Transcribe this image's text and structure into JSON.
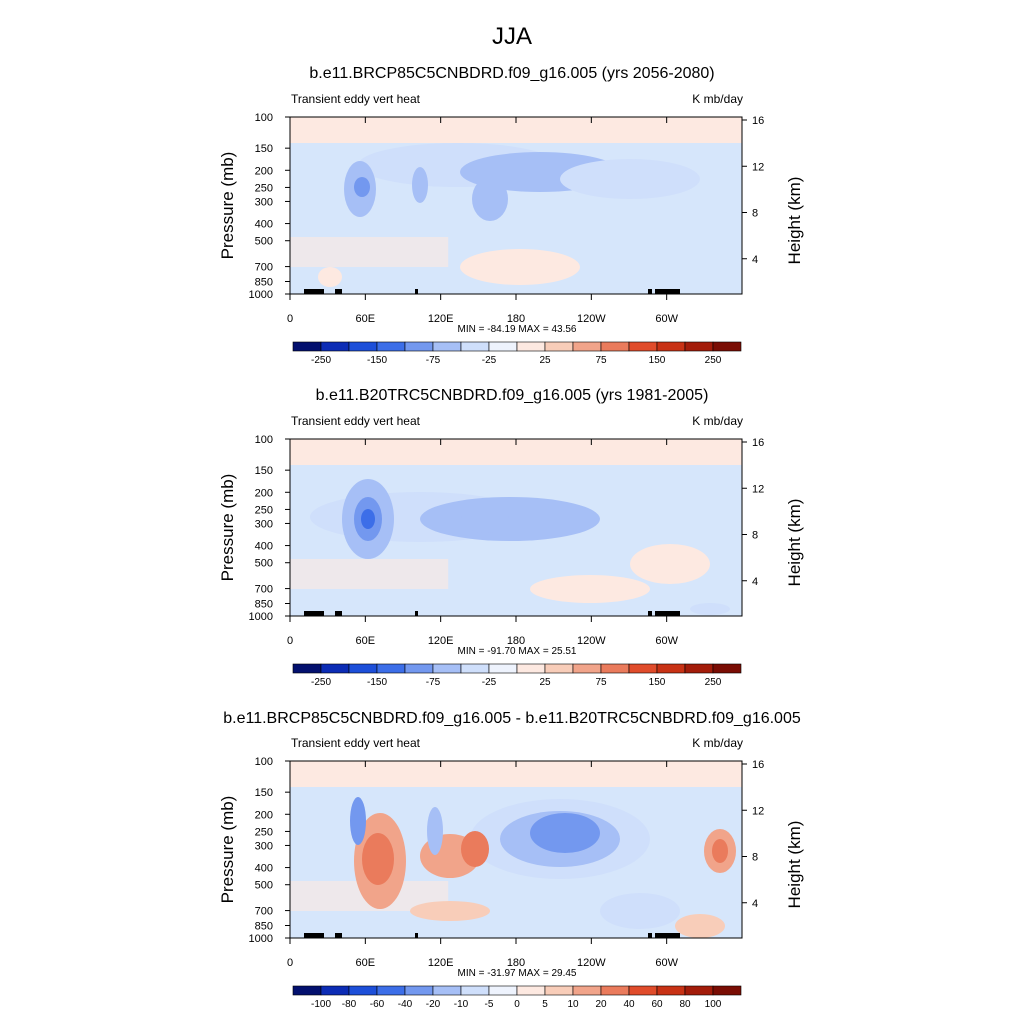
{
  "figure_title": "JJA",
  "colors": {
    "ocean_fill": "#d6e6fb",
    "land_fill": "#000000",
    "frame": "#000000"
  },
  "chart_data": [
    {
      "type": "heatmap",
      "title": "b.e11.BRCP85C5CNBDRD.f09_g16.005 (yrs 2056-2080)",
      "left_label": "Transient eddy vert heat",
      "right_label": "K mb/day",
      "ylabel": "Pressure (mb)",
      "ylabel_right": "Height (km)",
      "x_ticks": [
        "0",
        "60E",
        "120E",
        "180",
        "120W",
        "60W"
      ],
      "y_ticks": [
        "100",
        "150",
        "200",
        "250",
        "300",
        "400",
        "500",
        "700",
        "850",
        "1000"
      ],
      "y_ticks_right": [
        "16",
        "12",
        "8",
        "4"
      ],
      "stats": "MIN = -84.19  MAX =  43.56",
      "colorbar_labels": [
        "-250",
        "-150",
        "-75",
        "-25",
        "25",
        "75",
        "150",
        "250"
      ],
      "colorbar_colors": [
        "#03106e",
        "#0c2cb5",
        "#1d4fd9",
        "#3c6ee8",
        "#7398ef",
        "#a6bff6",
        "#cfdffb",
        "#eef3fd",
        "#fde9e1",
        "#f8cdb9",
        "#f1a48a",
        "#ea7b5c",
        "#e04c2b",
        "#c83215",
        "#a31c0a",
        "#7a0d04"
      ],
      "zlim": [
        -250,
        250
      ]
    },
    {
      "type": "heatmap",
      "title": "b.e11.B20TRC5CNBDRD.f09_g16.005 (yrs 1981-2005)",
      "left_label": "Transient eddy vert heat",
      "right_label": "K mb/day",
      "ylabel": "Pressure (mb)",
      "ylabel_right": "Height (km)",
      "x_ticks": [
        "0",
        "60E",
        "120E",
        "180",
        "120W",
        "60W"
      ],
      "y_ticks": [
        "100",
        "150",
        "200",
        "250",
        "300",
        "400",
        "500",
        "700",
        "850",
        "1000"
      ],
      "y_ticks_right": [
        "16",
        "12",
        "8",
        "4"
      ],
      "stats": "MIN = -91.70  MAX =  25.51",
      "colorbar_labels": [
        "-250",
        "-150",
        "-75",
        "-25",
        "25",
        "75",
        "150",
        "250"
      ],
      "colorbar_colors": [
        "#03106e",
        "#0c2cb5",
        "#1d4fd9",
        "#3c6ee8",
        "#7398ef",
        "#a6bff6",
        "#cfdffb",
        "#eef3fd",
        "#fde9e1",
        "#f8cdb9",
        "#f1a48a",
        "#ea7b5c",
        "#e04c2b",
        "#c83215",
        "#a31c0a",
        "#7a0d04"
      ],
      "zlim": [
        -250,
        250
      ]
    },
    {
      "type": "heatmap",
      "title": "b.e11.BRCP85C5CNBDRD.f09_g16.005 - b.e11.B20TRC5CNBDRD.f09_g16.005",
      "left_label": "Transient eddy vert heat",
      "right_label": "K mb/day",
      "ylabel": "Pressure (mb)",
      "ylabel_right": "Height (km)",
      "x_ticks": [
        "0",
        "60E",
        "120E",
        "180",
        "120W",
        "60W"
      ],
      "y_ticks": [
        "100",
        "150",
        "200",
        "250",
        "300",
        "400",
        "500",
        "700",
        "850",
        "1000"
      ],
      "y_ticks_right": [
        "16",
        "12",
        "8",
        "4"
      ],
      "stats": "MIN = -31.97  MAX =  29.45",
      "colorbar_labels": [
        "-100",
        "-80",
        "-60",
        "-40",
        "-20",
        "-10",
        "-5",
        "0",
        "5",
        "10",
        "20",
        "40",
        "60",
        "80",
        "100"
      ],
      "colorbar_colors": [
        "#03106e",
        "#0c2cb5",
        "#1d4fd9",
        "#3c6ee8",
        "#7398ef",
        "#a6bff6",
        "#cfdffb",
        "#eef3fd",
        "#fde9e1",
        "#f8cdb9",
        "#f1a48a",
        "#ea7b5c",
        "#e04c2b",
        "#c83215",
        "#a31c0a",
        "#7a0d04"
      ],
      "zlim": [
        -100,
        100
      ]
    }
  ]
}
